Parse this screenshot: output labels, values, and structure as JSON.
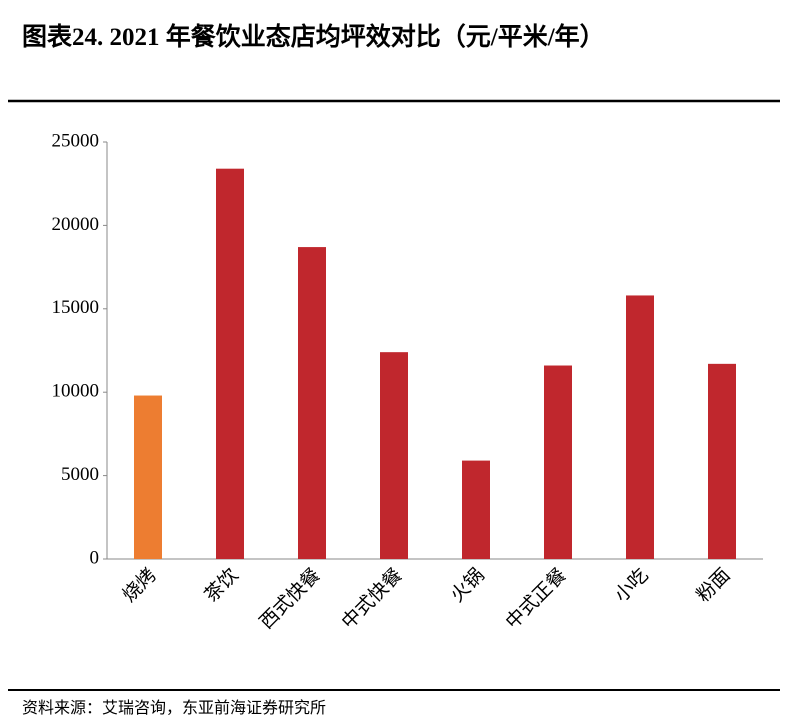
{
  "chart_data": {
    "type": "bar",
    "title": "图表24. 2021 年餐饮业态店均坪效对比（元/平米/年）",
    "source": "资料来源：艾瑞咨询，东亚前海证券研究所",
    "categories": [
      "烧烤",
      "茶饮",
      "西式快餐",
      "中式快餐",
      "火锅",
      "中式正餐",
      "小吃",
      "粉面"
    ],
    "values": [
      9800,
      23400,
      18700,
      12400,
      5900,
      11600,
      15800,
      11700
    ],
    "colors": [
      "#ed7d31",
      "#c0272d",
      "#c0272d",
      "#c0272d",
      "#c0272d",
      "#c0272d",
      "#c0272d",
      "#c0272d"
    ],
    "ylim": [
      0,
      25000
    ],
    "yticks": [
      0,
      5000,
      10000,
      15000,
      20000,
      25000
    ],
    "grid": false
  }
}
